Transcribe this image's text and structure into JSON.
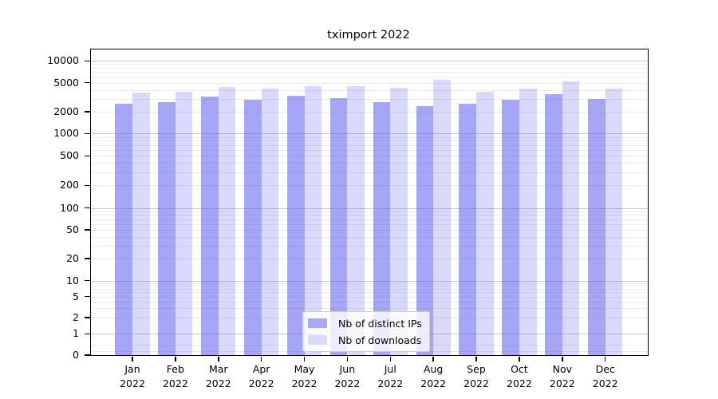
{
  "title": "tximport 2022",
  "chart_data": {
    "type": "bar",
    "title": "tximport 2022",
    "categories": [
      "Jan",
      "Feb",
      "Mar",
      "Apr",
      "May",
      "Jun",
      "Jul",
      "Aug",
      "Sep",
      "Oct",
      "Nov",
      "Dec"
    ],
    "year_label": "2022",
    "series": [
      {
        "name": "Nb of distinct IPs",
        "bar_color": "rgba(80,80,240,0.51)",
        "legend_color": "#a8a8f4",
        "values": [
          2600,
          2700,
          3250,
          2950,
          3350,
          3100,
          2700,
          2400,
          2600,
          2900,
          3450,
          3000
        ]
      },
      {
        "name": "Nb of downloads",
        "bar_color": "rgba(80,80,240,0.22)",
        "legend_color": "#d9d9fa",
        "values": [
          3650,
          3800,
          4400,
          4150,
          4500,
          4500,
          4300,
          5450,
          3750,
          4150,
          5250,
          4200
        ]
      }
    ],
    "ylabel": "",
    "xlabel": "",
    "yscale": "log-like (0 baseline, decades 1-10000)",
    "y_ticks": [
      0,
      1,
      2,
      5,
      10,
      20,
      50,
      100,
      200,
      500,
      1000,
      2000,
      5000,
      10000
    ],
    "ylim": [
      0,
      14500
    ],
    "grid": "horizontal major + minor",
    "legend_position": "inside lower-center",
    "colors": {
      "major_gridline": "#c8c8c8",
      "minor_gridline": "#ebebeb",
      "axis": "#000000"
    }
  }
}
